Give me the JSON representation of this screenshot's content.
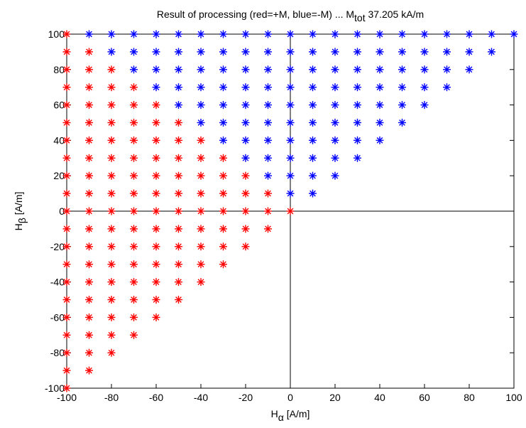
{
  "chart_data": {
    "type": "scatter",
    "title": {
      "prefix": "Result of processing (red=+M, blue=-M) ... M",
      "subscript": "tot",
      "suffix": " 37.205 kA/m"
    },
    "xlabel": {
      "base": "H",
      "subscript": "α",
      "unit": " [A/m]"
    },
    "ylabel": {
      "base": "H",
      "subscript": "β",
      "unit": " [A/m]"
    },
    "xlim": [
      -100,
      100
    ],
    "ylim": [
      -100,
      100
    ],
    "xticks": [
      -100,
      -80,
      -60,
      -40,
      -20,
      0,
      20,
      40,
      60,
      80,
      100
    ],
    "yticks": [
      -100,
      -80,
      -60,
      -40,
      -20,
      0,
      20,
      40,
      60,
      80,
      100
    ],
    "grid": false,
    "zero_lines": true,
    "marker": "asterisk",
    "grid_step": 10,
    "domain_rule": "points on a 10 A/m grid with H_beta >= H_alpha",
    "series": [
      {
        "color": "#ff0000",
        "rule": "+M: H_alpha + H_beta <= 0"
      },
      {
        "color": "#0000ff",
        "rule": "-M: H_alpha + H_beta > 0"
      }
    ]
  }
}
